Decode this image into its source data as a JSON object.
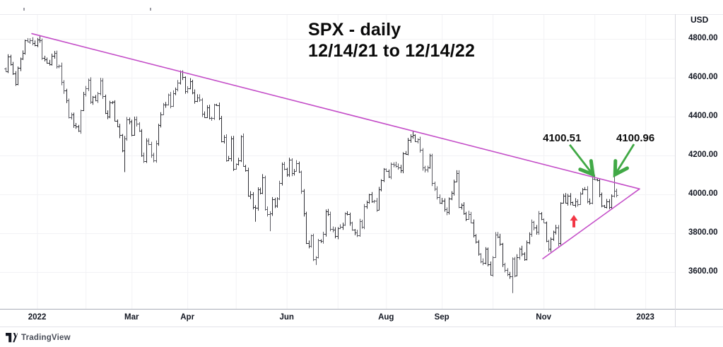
{
  "header": {
    "title_line1": "SPX - daily",
    "title_line2": "12/14/21 to 12/14/22"
  },
  "price_axis": {
    "currency_label": "USD",
    "ticks": [
      {
        "label": "4800.00",
        "price": 4800
      },
      {
        "label": "4600.00",
        "price": 4600
      },
      {
        "label": "4400.00",
        "price": 4400
      },
      {
        "label": "4200.00",
        "price": 4200
      },
      {
        "label": "4000.00",
        "price": 4000
      },
      {
        "label": "3800.00",
        "price": 3800
      },
      {
        "label": "3600.00",
        "price": 3600
      }
    ]
  },
  "time_axis": {
    "labeled_ticks": [
      {
        "label": "2022",
        "day": 13
      },
      {
        "label": "Mar",
        "day": 52
      },
      {
        "label": "Apr",
        "day": 75
      },
      {
        "label": "Jun",
        "day": 116
      },
      {
        "label": "Aug",
        "day": 157
      },
      {
        "label": "Sep",
        "day": 180
      },
      {
        "label": "Nov",
        "day": 222
      },
      {
        "label": "2023",
        "day": 264
      }
    ],
    "unlabeled_tick_days": [
      33,
      95,
      137,
      201,
      243
    ]
  },
  "branding": {
    "logo_text": "TradingView"
  },
  "colors": {
    "bar": "#2e2e34",
    "bar_light": "#5a5a62",
    "trendline": "#c44ec8",
    "green_arrow": "#41a946",
    "red_arrow": "#f23645",
    "grid": "#f2f2f5",
    "top_border": "#ebebef",
    "axis_line": "#a9adb8",
    "label_row_line": "#e2e2e8",
    "panel_separator": "#d9d9df",
    "axis_text": "#131722",
    "annotation_text": "#0c0c0c"
  },
  "chart_data": {
    "type": "ohlc-bar",
    "symbol": "SPX",
    "timeframe": "daily",
    "start_date": "12/14/21",
    "end_date": "12/14/22",
    "title": "SPX - daily 12/14/21 to 12/14/22",
    "ylabel": "USD",
    "ylim": [
      3410,
      4930
    ],
    "gridline_prices": [
      4800,
      4600,
      4400,
      4200,
      4000,
      3800,
      3600
    ],
    "legend_position": "none",
    "num_bars": 253,
    "closes": [
      4634,
      4709,
      4669,
      4621,
      4568,
      4650,
      4697,
      4726,
      4791,
      4786,
      4793,
      4778,
      4766,
      4797,
      4793,
      4701,
      4696,
      4677,
      4670,
      4713,
      4726,
      4659,
      4663,
      4577,
      4533,
      4483,
      4398,
      4410,
      4356,
      4350,
      4327,
      4432,
      4516,
      4547,
      4589,
      4477,
      4501,
      4484,
      4521,
      4587,
      4504,
      4419,
      4401,
      4471,
      4475,
      4380,
      4349,
      4305,
      4225,
      4288,
      4385,
      4374,
      4306,
      4387,
      4363,
      4329,
      4201,
      4170,
      4278,
      4260,
      4204,
      4173,
      4262,
      4358,
      4412,
      4463,
      4461,
      4512,
      4456,
      4520,
      4543,
      4576,
      4631,
      4602,
      4530,
      4546,
      4583,
      4525,
      4481,
      4500,
      4488,
      4413,
      4397,
      4446,
      4393,
      4392,
      4462,
      4459,
      4394,
      4272,
      4296,
      4175,
      4184,
      4287,
      4132,
      4155,
      4176,
      4300,
      4147,
      4123,
      3991,
      4001,
      3935,
      3930,
      4024,
      4008,
      4089,
      3924,
      3900,
      3901,
      3974,
      3941,
      3979,
      4058,
      4158,
      4132,
      4101,
      4177,
      4109,
      4121,
      4160,
      4116,
      4017,
      3901,
      3750,
      3735,
      3790,
      3667,
      3675,
      3764,
      3760,
      3796,
      3912,
      3900,
      3822,
      3819,
      3785,
      3825,
      3831,
      3845,
      3902,
      3899,
      3854,
      3819,
      3802,
      3790,
      3863,
      3831,
      3937,
      3960,
      3999,
      3962,
      3967,
      3921,
      4024,
      4072,
      4130,
      4119,
      4091,
      4155,
      4152,
      4145,
      4140,
      4122,
      4210,
      4207,
      4280,
      4297,
      4305,
      4274,
      4283,
      4228,
      4137,
      4128,
      4140,
      4199,
      4058,
      4030,
      3986,
      3955,
      3967,
      3924,
      3908,
      3979,
      4006,
      4067,
      4110,
      3933,
      3946,
      3901,
      3873,
      3900,
      3856,
      3790,
      3758,
      3693,
      3655,
      3647,
      3719,
      3640,
      3586,
      3678,
      3791,
      3783,
      3744,
      3640,
      3612,
      3589,
      3577,
      3670,
      3583,
      3678,
      3720,
      3695,
      3666,
      3753,
      3797,
      3859,
      3830,
      3807,
      3901,
      3872,
      3856,
      3760,
      3720,
      3771,
      3807,
      3828,
      3748,
      3956,
      3993,
      3957,
      3992,
      3959,
      3947,
      3965,
      3950,
      4004,
      4027,
      4026,
      3964,
      3958,
      4080,
      4077,
      4072,
      3999,
      3941,
      3934,
      3964,
      3934,
      3991,
      4020,
      3996
    ],
    "bar_overrides": {
      "14": {
        "high": 4818.6
      },
      "49": {
        "low": 4114.7
      },
      "72": {
        "high": 4637.3
      },
      "103": {
        "low": 3858.9
      },
      "109": {
        "low": 3810.3
      },
      "128": {
        "low": 3636.9
      },
      "168": {
        "high": 4325.3
      },
      "209": {
        "low": 3491.6
      },
      "243": {
        "high": 4100.51
      },
      "251": {
        "high": 4100.96
      }
    },
    "annotations": {
      "trendlines": [
        {
          "name": "descending-resistance",
          "from": {
            "day": 10.8,
            "price": 4827
          },
          "to": {
            "day": 261.6,
            "price": 4028
          }
        },
        {
          "name": "rising-support",
          "from": {
            "day": 221.7,
            "price": 3669
          },
          "to": {
            "day": 261.6,
            "price": 4028
          }
        }
      ],
      "price_labels": [
        {
          "text": "4100.51",
          "day": 221.7,
          "price": 4320
        },
        {
          "text": "4100.96",
          "day": 252.0,
          "price": 4320
        }
      ],
      "green_arrows": [
        {
          "points_to": "4100.51",
          "tail": {
            "day": 232.8,
            "price": 4255
          },
          "tip": {
            "day": 242.1,
            "price": 4106
          }
        },
        {
          "points_to": "4100.96",
          "tail": {
            "day": 259.3,
            "price": 4258
          },
          "tip": {
            "day": 251.7,
            "price": 4106
          }
        }
      ],
      "red_arrow": {
        "direction": "up",
        "day": 234.5,
        "tip_price": 3894,
        "tail_price": 3830
      }
    }
  }
}
